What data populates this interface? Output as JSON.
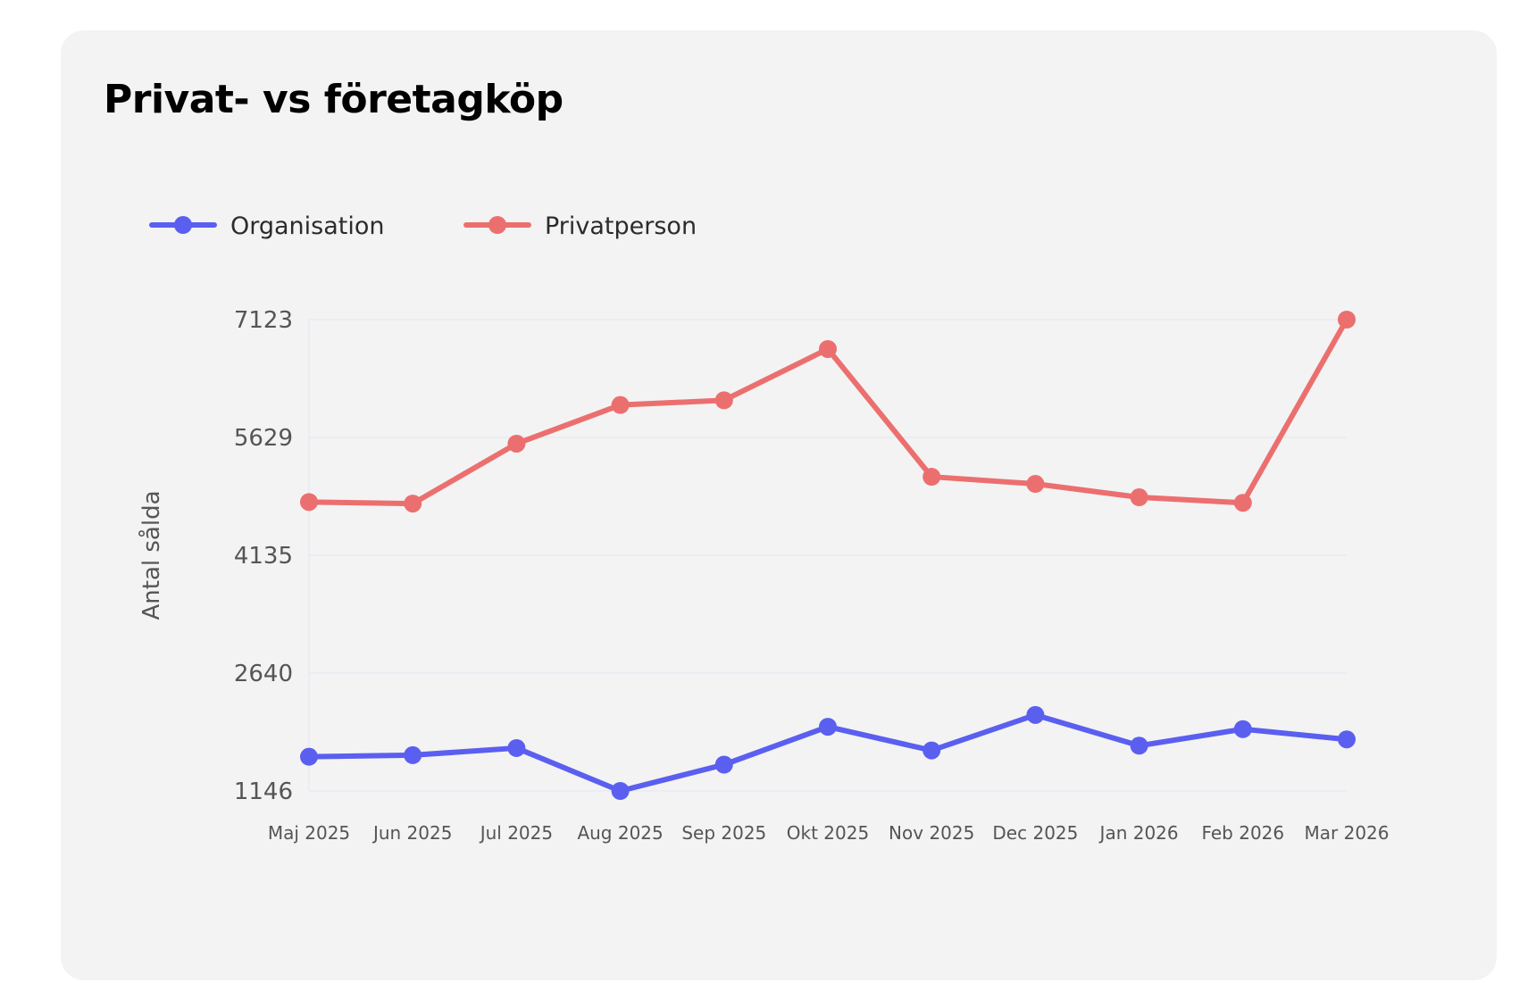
{
  "chart_data": {
    "type": "line",
    "title": "Privat- vs företagköp",
    "xlabel": "",
    "ylabel": "Antal sålda",
    "categories": [
      "Maj 2025",
      "Jun 2025",
      "Jul 2025",
      "Aug 2025",
      "Sep 2025",
      "Okt 2025",
      "Nov 2025",
      "Dec 2025",
      "Jan 2026",
      "Feb 2026",
      "Mar 2026"
    ],
    "yticks": [
      "1146",
      "2640",
      "4135",
      "5629",
      "7123"
    ],
    "ylim": [
      1146,
      7123
    ],
    "grid": true,
    "legend_position": "top-left",
    "series": [
      {
        "name": "Organisation",
        "color": "#5b5ff0",
        "values": [
          1580,
          1600,
          1690,
          1146,
          1480,
          1960,
          1660,
          2110,
          1720,
          1930,
          1800
        ]
      },
      {
        "name": "Privatperson",
        "color": "#ec6f6f",
        "values": [
          4810,
          4790,
          5550,
          6040,
          6100,
          6750,
          5130,
          5040,
          4870,
          4800,
          7123
        ]
      }
    ]
  }
}
